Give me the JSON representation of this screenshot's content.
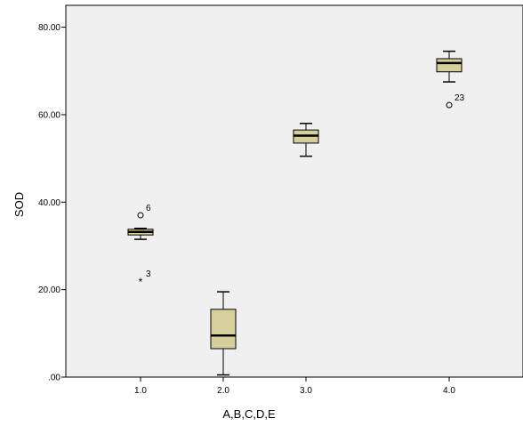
{
  "chart_data": {
    "type": "boxplot",
    "xlabel": "A,B,C,D,E",
    "ylabel": "SOD",
    "ylim": [
      0,
      85
    ],
    "yticks": [
      {
        "value": 0,
        "label": ".00"
      },
      {
        "value": 20,
        "label": "20.00"
      },
      {
        "value": 40,
        "label": "40.00"
      },
      {
        "value": 60,
        "label": "60.00"
      },
      {
        "value": 80,
        "label": "80.00"
      }
    ],
    "categories": [
      "1.0",
      "2.0",
      "3.0",
      "4.0"
    ],
    "boxes": [
      {
        "category": "1.0",
        "min": 31.5,
        "q1": 32.5,
        "median": 33.2,
        "q3": 33.8,
        "max": 34.0
      },
      {
        "category": "2.0",
        "min": 0.5,
        "q1": 6.5,
        "median": 9.5,
        "q3": 15.5,
        "max": 19.5
      },
      {
        "category": "3.0",
        "min": 50.5,
        "q1": 53.5,
        "median": 55.2,
        "q3": 56.5,
        "max": 58.0
      },
      {
        "category": "4.0",
        "min": 67.5,
        "q1": 69.8,
        "median": 71.8,
        "q3": 72.8,
        "max": 74.5
      }
    ],
    "outliers": [
      {
        "category": "1.0",
        "value": 37.0,
        "label": "6",
        "marker": "circle"
      },
      {
        "category": "1.0",
        "value": 22.0,
        "label": "3",
        "marker": "star"
      },
      {
        "category": "4.0",
        "value": 62.2,
        "label": "23",
        "marker": "circle"
      }
    ],
    "colors": {
      "plot_background": "#f0f0f0",
      "box_fill": "#d6cf9c",
      "stroke": "#000000"
    },
    "grid": false
  }
}
